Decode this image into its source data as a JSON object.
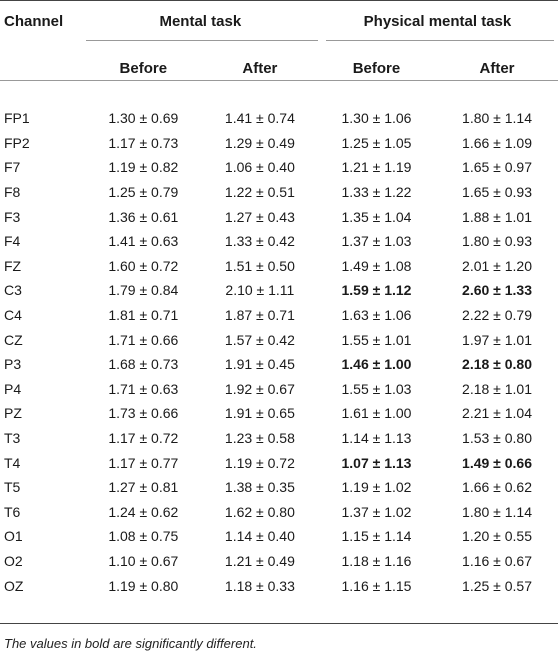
{
  "header": {
    "channel": "Channel",
    "group1": "Mental task",
    "group2": "Physical mental task",
    "before": "Before",
    "after": "After"
  },
  "rows": [
    {
      "ch": "FP1",
      "m_before": "1.30 ± 0.69",
      "m_after": "1.41 ± 0.74",
      "p_before": "1.30 ± 1.06",
      "p_after": "1.80 ± 1.14",
      "bold": false
    },
    {
      "ch": "FP2",
      "m_before": "1.17 ± 0.73",
      "m_after": "1.29 ± 0.49",
      "p_before": "1.25 ± 1.05",
      "p_after": "1.66 ± 1.09",
      "bold": false
    },
    {
      "ch": "F7",
      "m_before": "1.19 ± 0.82",
      "m_after": "1.06 ± 0.40",
      "p_before": "1.21 ± 1.19",
      "p_after": "1.65 ± 0.97",
      "bold": false
    },
    {
      "ch": "F8",
      "m_before": "1.25 ± 0.79",
      "m_after": "1.22 ± 0.51",
      "p_before": "1.33 ± 1.22",
      "p_after": "1.65 ± 0.93",
      "bold": false
    },
    {
      "ch": "F3",
      "m_before": "1.36 ± 0.61",
      "m_after": "1.27 ± 0.43",
      "p_before": "1.35 ± 1.04",
      "p_after": "1.88 ± 1.01",
      "bold": false
    },
    {
      "ch": "F4",
      "m_before": "1.41 ± 0.63",
      "m_after": "1.33 ± 0.42",
      "p_before": "1.37 ± 1.03",
      "p_after": "1.80 ± 0.93",
      "bold": false
    },
    {
      "ch": "FZ",
      "m_before": "1.60 ± 0.72",
      "m_after": "1.51 ± 0.50",
      "p_before": "1.49 ± 1.08",
      "p_after": "2.01 ± 1.20",
      "bold": false
    },
    {
      "ch": "C3",
      "m_before": "1.79 ± 0.84",
      "m_after": "2.10 ± 1.11",
      "p_before": "1.59 ± 1.12",
      "p_after": "2.60 ± 1.33",
      "bold": true
    },
    {
      "ch": "C4",
      "m_before": "1.81 ± 0.71",
      "m_after": "1.87 ± 0.71",
      "p_before": "1.63 ± 1.06",
      "p_after": "2.22 ± 0.79",
      "bold": false
    },
    {
      "ch": "CZ",
      "m_before": "1.71 ± 0.66",
      "m_after": "1.57 ± 0.42",
      "p_before": "1.55 ± 1.01",
      "p_after": "1.97 ± 1.01",
      "bold": false
    },
    {
      "ch": "P3",
      "m_before": "1.68 ± 0.73",
      "m_after": "1.91 ± 0.45",
      "p_before": "1.46 ± 1.00",
      "p_after": "2.18 ± 0.80",
      "bold": true
    },
    {
      "ch": "P4",
      "m_before": "1.71 ± 0.63",
      "m_after": "1.92 ± 0.67",
      "p_before": "1.55 ± 1.03",
      "p_after": "2.18 ± 1.01",
      "bold": false
    },
    {
      "ch": "PZ",
      "m_before": "1.73 ± 0.66",
      "m_after": "1.91 ± 0.65",
      "p_before": "1.61 ± 1.00",
      "p_after": "2.21 ± 1.04",
      "bold": false
    },
    {
      "ch": "T3",
      "m_before": "1.17 ± 0.72",
      "m_after": "1.23 ± 0.58",
      "p_before": "1.14 ± 1.13",
      "p_after": "1.53 ± 0.80",
      "bold": false
    },
    {
      "ch": "T4",
      "m_before": "1.17 ± 0.77",
      "m_after": "1.19 ± 0.72",
      "p_before": "1.07 ± 1.13",
      "p_after": "1.49 ± 0.66",
      "bold": true
    },
    {
      "ch": "T5",
      "m_before": "1.27 ± 0.81",
      "m_after": "1.38 ± 0.35",
      "p_before": "1.19 ± 1.02",
      "p_after": "1.66 ± 0.62",
      "bold": false
    },
    {
      "ch": "T6",
      "m_before": "1.24 ± 0.62",
      "m_after": "1.62 ± 0.80",
      "p_before": "1.37 ± 1.02",
      "p_after": "1.80 ± 1.14",
      "bold": false
    },
    {
      "ch": "O1",
      "m_before": "1.08 ± 0.75",
      "m_after": "1.14 ± 0.40",
      "p_before": "1.15 ± 1.14",
      "p_after": "1.20 ± 0.55",
      "bold": false
    },
    {
      "ch": "O2",
      "m_before": "1.10 ± 0.67",
      "m_after": "1.21 ± 0.49",
      "p_before": "1.18 ± 1.16",
      "p_after": "1.16 ± 0.67",
      "bold": false
    },
    {
      "ch": "OZ",
      "m_before": "1.19 ± 0.80",
      "m_after": "1.18 ± 0.33",
      "p_before": "1.16 ± 1.15",
      "p_after": "1.25 ± 0.57",
      "bold": false
    }
  ],
  "footnote": "The values in bold are significantly different."
}
